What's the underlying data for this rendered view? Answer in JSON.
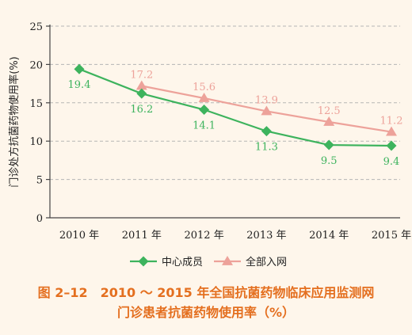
{
  "chart_data": {
    "type": "line",
    "categories": [
      "2010 年",
      "2011 年",
      "2012 年",
      "2013 年",
      "2014 年",
      "2015 年"
    ],
    "series": [
      {
        "name": "中心成员",
        "values": [
          19.4,
          16.2,
          14.1,
          11.3,
          9.5,
          9.4
        ],
        "labels": [
          "19.4",
          "16.2",
          "14.1",
          "11.3",
          "9.5",
          "9.4"
        ],
        "color": "#3db35d",
        "marker": "diamond"
      },
      {
        "name": "全部入网",
        "values": [
          null,
          17.2,
          15.6,
          13.9,
          12.5,
          11.2
        ],
        "labels": [
          "",
          "17.2",
          "15.6",
          "13.9",
          "12.5",
          "11.2"
        ],
        "color": "#eda29a",
        "marker": "triangle"
      }
    ],
    "ylabel": "门诊处方抗菌药物使用率(%)",
    "ylim": [
      0,
      25
    ],
    "yticks": [
      "0",
      "5",
      "10",
      "15",
      "20",
      "25"
    ],
    "grid": true,
    "legend_position": "bottom"
  },
  "caption": {
    "line1": "图 2–12　2010 ～ 2015 年全国抗菌药物临床应用监测网",
    "line2": "门诊患者抗菌药物使用率（%）"
  }
}
